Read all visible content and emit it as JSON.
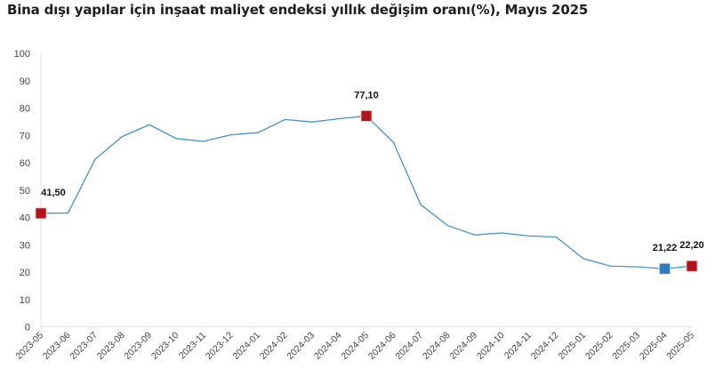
{
  "chart_data": {
    "type": "line",
    "title": "Bina dışı yapılar için inşaat maliyet endeksi yıllık değişim oranı(%), Mayıs 2025",
    "xlabel": "",
    "ylabel": "",
    "ylim": [
      0,
      100
    ],
    "yticks": [
      "0",
      "10",
      "20",
      "30",
      "40",
      "50",
      "60",
      "70",
      "80",
      "90",
      "100"
    ],
    "grid": false,
    "categories": [
      "2023-05",
      "2023-06",
      "2023-07",
      "2023-08",
      "2023-09",
      "2023-10",
      "2023-11",
      "2023-12",
      "2024-01",
      "2024-02",
      "2024-03",
      "2024-04",
      "2024-05",
      "2024-06",
      "2024-07",
      "2024-08",
      "2024-09",
      "2024-10",
      "2024-11",
      "2024-12",
      "2025-01",
      "2025-02",
      "2025-03",
      "2025-04",
      "2025-05"
    ],
    "values": [
      41.5,
      41.6,
      61.3,
      69.6,
      73.9,
      68.8,
      67.8,
      70.2,
      71.0,
      75.8,
      74.9,
      76.1,
      77.1,
      67.4,
      44.7,
      37.0,
      33.6,
      34.3,
      33.2,
      32.8,
      24.9,
      22.2,
      21.9,
      21.22,
      22.2
    ],
    "line_color": "#4a90c8",
    "highlights": [
      {
        "index": 0,
        "label": "41,50",
        "color": "#b0151c"
      },
      {
        "index": 12,
        "label": "77,10",
        "color": "#b0151c"
      },
      {
        "index": 23,
        "label": "21,22",
        "color": "#2e7bbf"
      },
      {
        "index": 24,
        "label": "22,20",
        "color": "#b0151c"
      }
    ]
  }
}
